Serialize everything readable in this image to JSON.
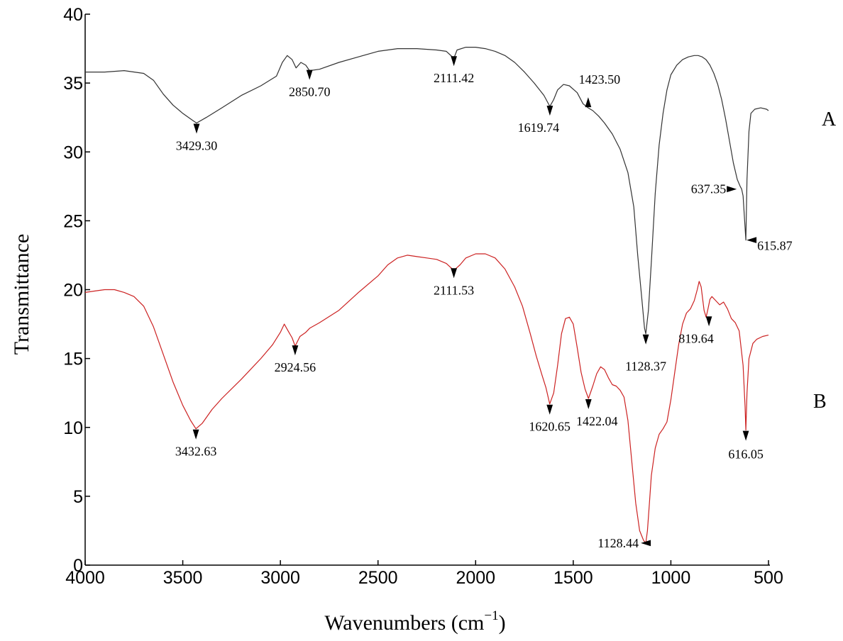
{
  "chart_data": {
    "type": "line",
    "title": "",
    "xlabel": "Wavenumbers (cm",
    "xlabel_sup": "−1",
    "xlabel_close": ")",
    "ylabel": "Transmittance",
    "xlim": [
      4000,
      500
    ],
    "ylim": [
      0,
      40
    ],
    "x_ticks": [
      4000,
      3500,
      3000,
      2500,
      2000,
      1500,
      1000,
      500
    ],
    "y_ticks": [
      0,
      5,
      10,
      15,
      20,
      25,
      30,
      35,
      40
    ],
    "grid": false,
    "series": [
      {
        "name": "A",
        "color": "#333333",
        "points": [
          [
            4000,
            35.8
          ],
          [
            3900,
            35.8
          ],
          [
            3800,
            35.9
          ],
          [
            3700,
            35.7
          ],
          [
            3650,
            35.2
          ],
          [
            3600,
            34.2
          ],
          [
            3550,
            33.4
          ],
          [
            3500,
            32.8
          ],
          [
            3450,
            32.3
          ],
          [
            3429.3,
            32.1
          ],
          [
            3380,
            32.5
          ],
          [
            3300,
            33.2
          ],
          [
            3200,
            34.1
          ],
          [
            3100,
            34.8
          ],
          [
            3020,
            35.5
          ],
          [
            2990,
            36.5
          ],
          [
            2965,
            37.0
          ],
          [
            2940,
            36.7
          ],
          [
            2920,
            36.1
          ],
          [
            2895,
            36.5
          ],
          [
            2870,
            36.3
          ],
          [
            2850.7,
            35.9
          ],
          [
            2800,
            36.0
          ],
          [
            2700,
            36.5
          ],
          [
            2600,
            36.9
          ],
          [
            2500,
            37.3
          ],
          [
            2400,
            37.5
          ],
          [
            2300,
            37.5
          ],
          [
            2200,
            37.4
          ],
          [
            2150,
            37.3
          ],
          [
            2111.42,
            36.8
          ],
          [
            2095,
            37.4
          ],
          [
            2050,
            37.6
          ],
          [
            2000,
            37.6
          ],
          [
            1950,
            37.5
          ],
          [
            1900,
            37.3
          ],
          [
            1850,
            37.0
          ],
          [
            1800,
            36.5
          ],
          [
            1750,
            35.8
          ],
          [
            1700,
            35.0
          ],
          [
            1650,
            34.1
          ],
          [
            1619.74,
            33.3
          ],
          [
            1600,
            33.8
          ],
          [
            1580,
            34.5
          ],
          [
            1550,
            34.9
          ],
          [
            1520,
            34.8
          ],
          [
            1480,
            34.3
          ],
          [
            1450,
            33.5
          ],
          [
            1423.5,
            33.2
          ],
          [
            1400,
            33.0
          ],
          [
            1370,
            32.6
          ],
          [
            1340,
            32.1
          ],
          [
            1300,
            31.3
          ],
          [
            1260,
            30.2
          ],
          [
            1220,
            28.5
          ],
          [
            1190,
            26.0
          ],
          [
            1170,
            22.5
          ],
          [
            1150,
            19.5
          ],
          [
            1135,
            17.2
          ],
          [
            1128.37,
            16.8
          ],
          [
            1115,
            18.5
          ],
          [
            1100,
            22.0
          ],
          [
            1080,
            27.0
          ],
          [
            1060,
            30.5
          ],
          [
            1040,
            32.8
          ],
          [
            1020,
            34.5
          ],
          [
            1000,
            35.6
          ],
          [
            970,
            36.3
          ],
          [
            940,
            36.7
          ],
          [
            910,
            36.9
          ],
          [
            880,
            37.0
          ],
          [
            860,
            37.0
          ],
          [
            840,
            36.9
          ],
          [
            820,
            36.7
          ],
          [
            800,
            36.3
          ],
          [
            780,
            35.7
          ],
          [
            760,
            34.9
          ],
          [
            740,
            33.8
          ],
          [
            720,
            32.4
          ],
          [
            700,
            30.8
          ],
          [
            680,
            29.2
          ],
          [
            660,
            28.0
          ],
          [
            645,
            27.5
          ],
          [
            637.35,
            27.3
          ],
          [
            630,
            26.8
          ],
          [
            620,
            24.5
          ],
          [
            615.87,
            23.6
          ],
          [
            610,
            28.0
          ],
          [
            600,
            31.5
          ],
          [
            590,
            32.8
          ],
          [
            570,
            33.1
          ],
          [
            540,
            33.2
          ],
          [
            510,
            33.1
          ],
          [
            500,
            33.0
          ]
        ],
        "peaks": [
          {
            "label": "3429.30",
            "x": 3429.3,
            "y": 32.1
          },
          {
            "label": "2850.70",
            "x": 2850.7,
            "y": 35.9
          },
          {
            "label": "2111.42",
            "x": 2111.42,
            "y": 36.8
          },
          {
            "label": "1619.74",
            "x": 1619.74,
            "y": 33.3
          },
          {
            "label": "1423.50",
            "x": 1423.5,
            "y": 33.2
          },
          {
            "label": "1128.37",
            "x": 1128.37,
            "y": 16.8
          },
          {
            "label": "637.35",
            "x": 637.35,
            "y": 27.3
          },
          {
            "label": "615.87",
            "x": 615.87,
            "y": 23.6
          }
        ]
      },
      {
        "name": "B",
        "color": "#cc2222",
        "points": [
          [
            4000,
            19.8
          ],
          [
            3950,
            19.9
          ],
          [
            3900,
            20.0
          ],
          [
            3850,
            20.0
          ],
          [
            3800,
            19.8
          ],
          [
            3750,
            19.5
          ],
          [
            3700,
            18.8
          ],
          [
            3650,
            17.3
          ],
          [
            3600,
            15.3
          ],
          [
            3550,
            13.3
          ],
          [
            3500,
            11.6
          ],
          [
            3460,
            10.5
          ],
          [
            3432.63,
            9.9
          ],
          [
            3400,
            10.3
          ],
          [
            3350,
            11.3
          ],
          [
            3300,
            12.1
          ],
          [
            3200,
            13.5
          ],
          [
            3100,
            15.0
          ],
          [
            3040,
            16.0
          ],
          [
            3000,
            16.9
          ],
          [
            2980,
            17.5
          ],
          [
            2960,
            17.0
          ],
          [
            2940,
            16.5
          ],
          [
            2924.56,
            15.9
          ],
          [
            2900,
            16.6
          ],
          [
            2870,
            16.9
          ],
          [
            2850,
            17.2
          ],
          [
            2800,
            17.6
          ],
          [
            2700,
            18.5
          ],
          [
            2600,
            19.8
          ],
          [
            2500,
            21.0
          ],
          [
            2450,
            21.8
          ],
          [
            2400,
            22.3
          ],
          [
            2350,
            22.5
          ],
          [
            2300,
            22.4
          ],
          [
            2250,
            22.3
          ],
          [
            2200,
            22.2
          ],
          [
            2150,
            21.9
          ],
          [
            2111.53,
            21.4
          ],
          [
            2080,
            21.8
          ],
          [
            2050,
            22.3
          ],
          [
            2000,
            22.6
          ],
          [
            1950,
            22.6
          ],
          [
            1900,
            22.3
          ],
          [
            1850,
            21.5
          ],
          [
            1800,
            20.2
          ],
          [
            1760,
            18.8
          ],
          [
            1720,
            16.8
          ],
          [
            1690,
            15.2
          ],
          [
            1660,
            13.8
          ],
          [
            1640,
            12.9
          ],
          [
            1620.65,
            11.7
          ],
          [
            1600,
            12.5
          ],
          [
            1580,
            14.5
          ],
          [
            1560,
            16.8
          ],
          [
            1540,
            17.9
          ],
          [
            1520,
            18.0
          ],
          [
            1500,
            17.5
          ],
          [
            1480,
            15.8
          ],
          [
            1460,
            14.0
          ],
          [
            1440,
            12.8
          ],
          [
            1422.04,
            12.1
          ],
          [
            1400,
            13.0
          ],
          [
            1380,
            13.9
          ],
          [
            1360,
            14.4
          ],
          [
            1340,
            14.2
          ],
          [
            1320,
            13.6
          ],
          [
            1300,
            13.1
          ],
          [
            1280,
            13.0
          ],
          [
            1260,
            12.7
          ],
          [
            1240,
            12.2
          ],
          [
            1220,
            10.5
          ],
          [
            1200,
            7.5
          ],
          [
            1180,
            4.5
          ],
          [
            1160,
            2.5
          ],
          [
            1140,
            1.8
          ],
          [
            1128.44,
            1.6
          ],
          [
            1120,
            2.5
          ],
          [
            1110,
            4.5
          ],
          [
            1100,
            6.5
          ],
          [
            1080,
            8.5
          ],
          [
            1060,
            9.5
          ],
          [
            1040,
            9.9
          ],
          [
            1020,
            10.4
          ],
          [
            1000,
            12.0
          ],
          [
            980,
            14.0
          ],
          [
            960,
            16.0
          ],
          [
            940,
            17.5
          ],
          [
            920,
            18.3
          ],
          [
            900,
            18.6
          ],
          [
            880,
            19.2
          ],
          [
            865,
            20.0
          ],
          [
            855,
            20.6
          ],
          [
            845,
            20.2
          ],
          [
            830,
            18.5
          ],
          [
            819.64,
            18.0
          ],
          [
            810,
            18.6
          ],
          [
            800,
            19.3
          ],
          [
            790,
            19.5
          ],
          [
            770,
            19.2
          ],
          [
            750,
            18.9
          ],
          [
            730,
            19.1
          ],
          [
            710,
            18.6
          ],
          [
            690,
            17.9
          ],
          [
            670,
            17.6
          ],
          [
            650,
            17.0
          ],
          [
            630,
            14.5
          ],
          [
            620,
            11.5
          ],
          [
            616.05,
            9.8
          ],
          [
            610,
            12.5
          ],
          [
            600,
            15.0
          ],
          [
            580,
            16.1
          ],
          [
            560,
            16.4
          ],
          [
            530,
            16.6
          ],
          [
            500,
            16.7
          ]
        ],
        "peaks": [
          {
            "label": "3432.63",
            "x": 3432.63,
            "y": 9.9
          },
          {
            "label": "2924.56",
            "x": 2924.56,
            "y": 15.9
          },
          {
            "label": "2111.53",
            "x": 2111.53,
            "y": 21.4
          },
          {
            "label": "1620.65",
            "x": 1620.65,
            "y": 11.7
          },
          {
            "label": "1422.04",
            "x": 1422.04,
            "y": 12.1
          },
          {
            "label": "1128.44",
            "x": 1128.44,
            "y": 1.6
          },
          {
            "label": "819.64",
            "x": 819.64,
            "y": 18.0
          },
          {
            "label": "616.05",
            "x": 616.05,
            "y": 9.8
          }
        ]
      }
    ]
  }
}
